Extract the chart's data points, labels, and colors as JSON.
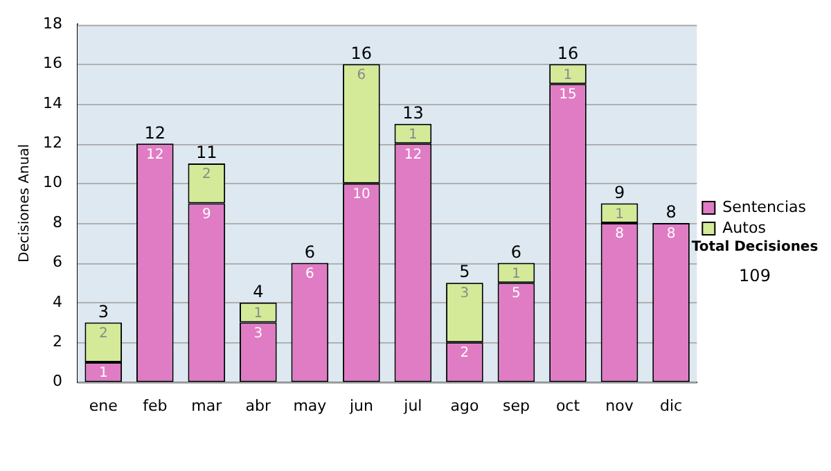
{
  "chart_data": {
    "type": "bar",
    "stacked": true,
    "ylabel": "Decisiones Anual",
    "categories": [
      "ene",
      "feb",
      "mar",
      "abr",
      "may",
      "jun",
      "jul",
      "ago",
      "sep",
      "oct",
      "nov",
      "dic"
    ],
    "series": [
      {
        "name": "Sentencias",
        "color": "#e07cc4",
        "values": [
          1,
          12,
          9,
          3,
          6,
          10,
          12,
          2,
          5,
          15,
          8,
          8
        ],
        "value_labels": [
          "1",
          "12",
          "9",
          "3",
          "6",
          "10",
          "12",
          "2",
          "5",
          "15",
          "8",
          "8"
        ]
      },
      {
        "name": "Autos",
        "color": "#d4ea98",
        "values": [
          2,
          0,
          2,
          1,
          0,
          6,
          1,
          3,
          1,
          1,
          1,
          0
        ],
        "value_labels": [
          "2",
          null,
          "2",
          "1",
          null,
          "6",
          "1",
          "3",
          "1",
          "1",
          "1",
          null
        ]
      }
    ],
    "totals": [
      "3",
      "12",
      "11",
      "4",
      "6",
      "16",
      "13",
      "5",
      "6",
      "16",
      "9",
      "8"
    ],
    "ylim": [
      0,
      18
    ],
    "yticks": [
      0,
      2,
      4,
      6,
      8,
      10,
      12,
      14,
      16,
      18
    ],
    "grid": "y",
    "legend": "right",
    "annotations": [
      "Total Decisiones",
      "109"
    ]
  }
}
